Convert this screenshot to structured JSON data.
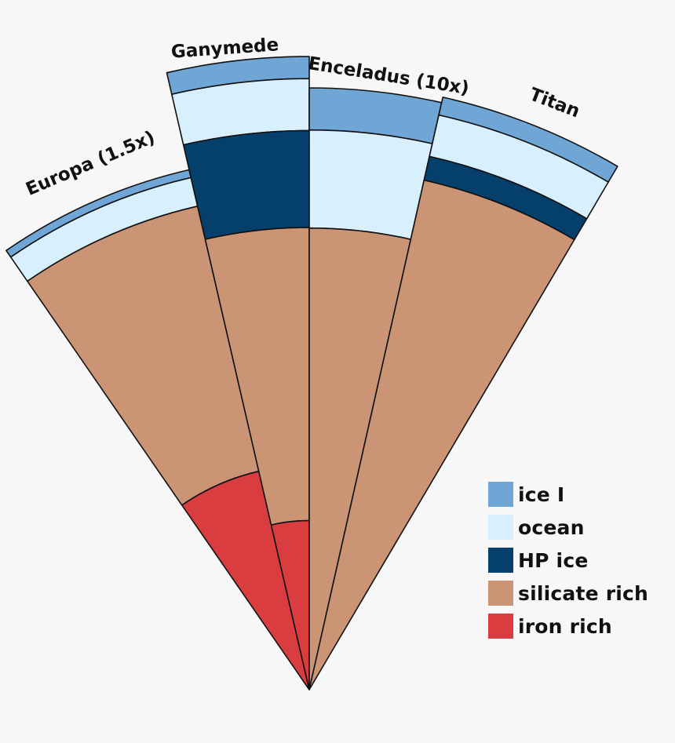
{
  "layers": {
    "ice_I": {
      "label": "ice I",
      "color": "#6fa6d6"
    },
    "ocean": {
      "label": "ocean",
      "color": "#d8f0fd"
    },
    "hp_ice": {
      "label": "HP ice",
      "color": "#053f6b"
    },
    "silicate": {
      "label": "silicate rich",
      "color": "#cb9475"
    },
    "iron": {
      "label": "iron rich",
      "color": "#d93d3f"
    }
  },
  "legend_order": [
    "ice_I",
    "ocean",
    "hp_ice",
    "silicate",
    "iron"
  ],
  "moons": [
    {
      "name": "Europa (1.5x)",
      "layers": [
        {
          "id": "ice_I",
          "outer_frac": 1.0,
          "inner_frac": 0.985
        },
        {
          "id": "ocean",
          "outer_frac": 0.985,
          "inner_frac": 0.93
        },
        {
          "id": "silicate",
          "outer_frac": 0.93,
          "inner_frac": 0.42
        },
        {
          "id": "iron",
          "outer_frac": 0.42,
          "inner_frac": 0.0
        }
      ]
    },
    {
      "name": "Ganymede",
      "layers": [
        {
          "id": "ice_I",
          "outer_frac": 1.0,
          "inner_frac": 0.965
        },
        {
          "id": "ocean",
          "outer_frac": 0.965,
          "inner_frac": 0.883
        },
        {
          "id": "hp_ice",
          "outer_frac": 0.883,
          "inner_frac": 0.73
        },
        {
          "id": "silicate",
          "outer_frac": 0.73,
          "inner_frac": 0.267
        },
        {
          "id": "iron",
          "outer_frac": 0.267,
          "inner_frac": 0.0
        }
      ]
    },
    {
      "name": "Enceladus (10x)",
      "layers": [
        {
          "id": "ice_I",
          "outer_frac": 1.0,
          "inner_frac": 0.93
        },
        {
          "id": "ocean",
          "outer_frac": 0.93,
          "inner_frac": 0.767
        },
        {
          "id": "silicate",
          "outer_frac": 0.767,
          "inner_frac": 0.0
        }
      ]
    },
    {
      "name": "Titan",
      "layers": [
        {
          "id": "ice_I",
          "outer_frac": 1.0,
          "inner_frac": 0.97
        },
        {
          "id": "ocean",
          "outer_frac": 0.97,
          "inner_frac": 0.9
        },
        {
          "id": "hp_ice",
          "outer_frac": 0.9,
          "inner_frac": 0.86
        },
        {
          "id": "silicate",
          "outer_frac": 0.86,
          "inner_frac": 0.0
        }
      ]
    }
  ]
}
